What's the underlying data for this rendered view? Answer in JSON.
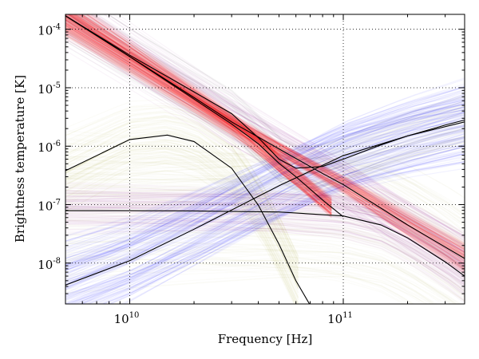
{
  "chart_data": {
    "type": "line",
    "title": "",
    "xlabel": "Frequency [Hz]",
    "ylabel": "Brightness temperature [K]",
    "xscale": "log",
    "yscale": "log",
    "xlim": [
      5000000000.0,
      370000000000.0
    ],
    "ylim": [
      2e-09,
      0.00018
    ],
    "grid": true,
    "x_ticks": [
      {
        "value": 10000000000.0,
        "base": "10",
        "exp": "10"
      },
      {
        "value": 100000000000.0,
        "base": "10",
        "exp": "11"
      }
    ],
    "y_ticks": [
      {
        "value": 0.0001,
        "base": "10",
        "exp": "-4"
      },
      {
        "value": 1e-05,
        "base": "10",
        "exp": "-5"
      },
      {
        "value": 1e-06,
        "base": "10",
        "exp": "-6"
      },
      {
        "value": 1e-07,
        "base": "10",
        "exp": "-7"
      },
      {
        "value": 1e-08,
        "base": "10",
        "exp": "-8"
      }
    ],
    "band_colors": {
      "red": "#ff0000",
      "blue": "#0000ff",
      "olive": "#b4b14a",
      "purple": "#800080",
      "gray": "#606060"
    },
    "series": [
      {
        "color": "#000000",
        "x": [
          5000000000.0,
          10000000000.0,
          20000000000.0,
          30000000000.0,
          40000000000.0,
          50000000000.0,
          60000000000.0,
          80000000000.0,
          100000000000.0
        ],
        "y": [
          0.00017,
          3.4e-05,
          6.4e-06,
          2.4e-06,
          1.1e-06,
          5.1e-07,
          3e-07,
          1.2e-07,
          6.2e-08
        ]
      },
      {
        "color": "#000000",
        "x": [
          5000000000.0,
          10000000000.0,
          20000000000.0,
          30000000000.0,
          50000000000.0,
          80000000000.0,
          100000000000.0,
          200000000000.0,
          370000000000.0
        ],
        "y": [
          0.00017,
          3.4e-05,
          6.8e-06,
          2.6e-06,
          9e-07,
          3.4e-07,
          2.2e-07,
          4.5e-08,
          1.2e-08
        ]
      },
      {
        "color": "#000000",
        "x": [
          5000000000.0,
          10000000000.0,
          15000000000.0,
          20000000000.0,
          30000000000.0,
          40000000000.0,
          50000000000.0,
          60000000000.0,
          70000000000.0
        ],
        "y": [
          3.8e-07,
          1.3e-06,
          1.55e-06,
          1.2e-06,
          4.2e-07,
          9.8e-08,
          2.1e-08,
          5e-09,
          1.9e-09
        ]
      },
      {
        "color": "#000000",
        "x": [
          5000000000.0,
          10000000000.0,
          20000000000.0,
          50000000000.0,
          100000000000.0,
          150000000000.0,
          200000000000.0,
          300000000000.0,
          370000000000.0
        ],
        "y": [
          7.9e-08,
          7.9e-08,
          7.8e-08,
          7.5e-08,
          6.4e-08,
          4.5e-08,
          2.7e-08,
          1.05e-08,
          6e-09
        ]
      },
      {
        "color": "#000000",
        "x": [
          5000000000.0,
          10000000000.0,
          20000000000.0,
          50000000000.0,
          100000000000.0,
          200000000000.0,
          370000000000.0
        ],
        "y": [
          4.2e-09,
          1.1e-08,
          3.8e-08,
          2.1e-07,
          6.9e-07,
          1.5e-06,
          2.6e-06
        ]
      },
      {
        "color": "#000000",
        "x": [
          5000000000.0,
          10000000000.0,
          20000000000.0,
          30000000000.0,
          40000000000.0,
          50000000000.0,
          60000000000.0,
          80000000000.0,
          100000000000.0,
          150000000000.0,
          200000000000.0,
          300000000000.0,
          370000000000.0
        ],
        "y": [
          0.00017,
          3.6e-05,
          8.5e-06,
          3.6e-06,
          1.4e-06,
          6e-07,
          4.2e-07,
          4.5e-07,
          6e-07,
          1.05e-06,
          1.5e-06,
          2.3e-06,
          2.8e-06
        ]
      }
    ]
  }
}
